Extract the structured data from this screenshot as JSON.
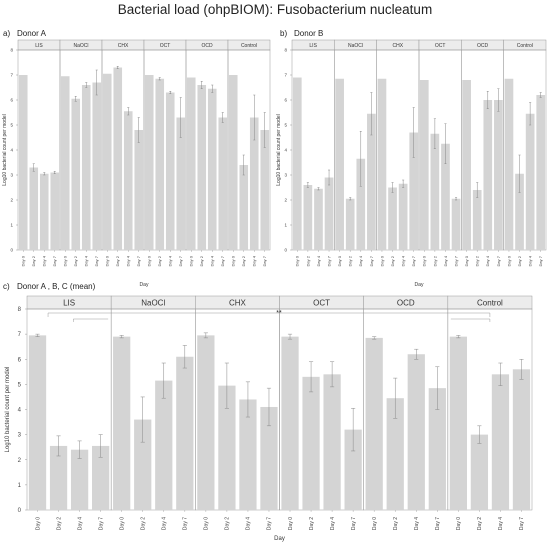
{
  "figure_title": "Bacterial load (ohpBIOM): Fusobacterium nucleatum",
  "panels": [
    {
      "letter": "a)",
      "label": "Donor A"
    },
    {
      "letter": "b)",
      "label": "Donor B"
    },
    {
      "letter": "c)",
      "label": "Donor A , B, C (mean)"
    }
  ],
  "significance_marker": "**",
  "colors": {
    "bar": "#d4d4d4",
    "strip": "#ececec",
    "border": "#9a9a9a",
    "error": "#888888"
  },
  "chart_data": [
    {
      "type": "bar",
      "panel": "a",
      "title": "Donor A",
      "xlabel": "Day",
      "ylabel": "Log10 bacterial count per model",
      "ylim": [
        0,
        8
      ],
      "yticks": [
        0,
        1,
        2,
        3,
        4,
        5,
        6,
        7,
        8
      ],
      "groups": [
        "LIS",
        "NaOCl",
        "CHX",
        "OCT",
        "OCD",
        "Control"
      ],
      "categories": [
        "Day 0",
        "Day 2",
        "Day 4",
        "Day 7"
      ],
      "values": [
        [
          7.0,
          3.3,
          3.05,
          3.1
        ],
        [
          6.95,
          6.05,
          6.6,
          6.7
        ],
        [
          7.05,
          7.3,
          5.55,
          4.8
        ],
        [
          7.0,
          6.85,
          6.3,
          5.3
        ],
        [
          6.9,
          6.6,
          6.45,
          5.3
        ],
        [
          7.0,
          3.4,
          5.3,
          4.8
        ]
      ],
      "errors": [
        [
          0,
          0.15,
          0.05,
          0.05
        ],
        [
          0,
          0.1,
          0.1,
          0.5
        ],
        [
          0,
          0.05,
          0.15,
          0.5
        ],
        [
          0,
          0.05,
          0.05,
          0.8
        ],
        [
          0,
          0.15,
          0.15,
          0.2
        ],
        [
          0,
          0.4,
          0.9,
          0.7
        ]
      ],
      "grid": false
    },
    {
      "type": "bar",
      "panel": "b",
      "title": "Donor B",
      "xlabel": "Day",
      "ylabel": "Log10 bacterial count per model",
      "ylim": [
        0,
        8
      ],
      "yticks": [
        0,
        1,
        2,
        3,
        4,
        5,
        6,
        7,
        8
      ],
      "groups": [
        "LIS",
        "NaOCl",
        "CHX",
        "OCT",
        "OCD",
        "Control"
      ],
      "categories": [
        "Day 0",
        "Day 2",
        "Day 4",
        "Day 7"
      ],
      "values": [
        [
          6.9,
          2.6,
          2.45,
          2.9
        ],
        [
          6.85,
          2.05,
          3.65,
          5.45
        ],
        [
          6.85,
          2.5,
          2.65,
          4.7
        ],
        [
          6.8,
          4.65,
          4.25,
          2.05
        ],
        [
          6.8,
          2.4,
          6.0,
          6.0
        ],
        [
          6.85,
          3.05,
          5.45,
          6.2
        ]
      ],
      "errors": [
        [
          0,
          0.1,
          0.05,
          0.3
        ],
        [
          0,
          0.05,
          1.1,
          0.85
        ],
        [
          0,
          0.2,
          0.15,
          1.0
        ],
        [
          0,
          0.6,
          0.8,
          0.05
        ],
        [
          0,
          0.3,
          0.35,
          0.45
        ],
        [
          0,
          0.75,
          0.45,
          0.1
        ]
      ],
      "grid": false
    },
    {
      "type": "bar",
      "panel": "c",
      "title": "Donor A , B, C (mean)",
      "xlabel": "Day",
      "ylabel": "Log10 bacterial count per model",
      "ylim": [
        0,
        8
      ],
      "yticks": [
        0,
        1,
        2,
        3,
        4,
        5,
        6,
        7,
        8
      ],
      "groups": [
        "LIS",
        "NaOCl",
        "CHX",
        "OCT",
        "OCD",
        "Control"
      ],
      "categories": [
        "Day 0",
        "Day 2",
        "Day 4",
        "Day 7"
      ],
      "values": [
        [
          6.95,
          2.55,
          2.4,
          2.55
        ],
        [
          6.9,
          3.6,
          5.15,
          6.1
        ],
        [
          6.95,
          4.95,
          4.4,
          4.1
        ],
        [
          6.9,
          5.3,
          5.4,
          3.2
        ],
        [
          6.85,
          4.45,
          6.2,
          4.85
        ],
        [
          6.9,
          3.0,
          5.4,
          5.6
        ]
      ],
      "errors": [
        [
          0.05,
          0.4,
          0.35,
          0.45
        ],
        [
          0.05,
          0.9,
          0.7,
          0.45
        ],
        [
          0.1,
          0.9,
          0.7,
          0.75
        ],
        [
          0.1,
          0.6,
          0.5,
          0.85
        ],
        [
          0.05,
          0.8,
          0.2,
          0.85
        ],
        [
          0.05,
          0.35,
          0.45,
          0.4
        ]
      ],
      "grid": false
    }
  ]
}
